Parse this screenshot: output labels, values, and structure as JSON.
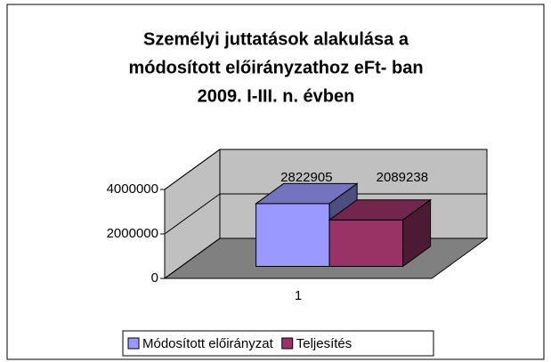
{
  "chart_data": {
    "type": "bar3d",
    "title": [
      "Személyi juttatások alakulása a",
      "módosított előirányzathoz eFt- ban",
      "2009. I-III. n. évben"
    ],
    "categories": [
      "1"
    ],
    "series": [
      {
        "name": "Módosított előirányzat",
        "color": "#9999ff",
        "values": [
          2822905
        ]
      },
      {
        "name": "Teljesítés",
        "color": "#993366",
        "values": [
          2089238
        ]
      }
    ],
    "ylim": [
      0,
      4000000
    ],
    "yticks": [
      0,
      2000000,
      4000000
    ],
    "grid": true,
    "legend": "bottom"
  }
}
